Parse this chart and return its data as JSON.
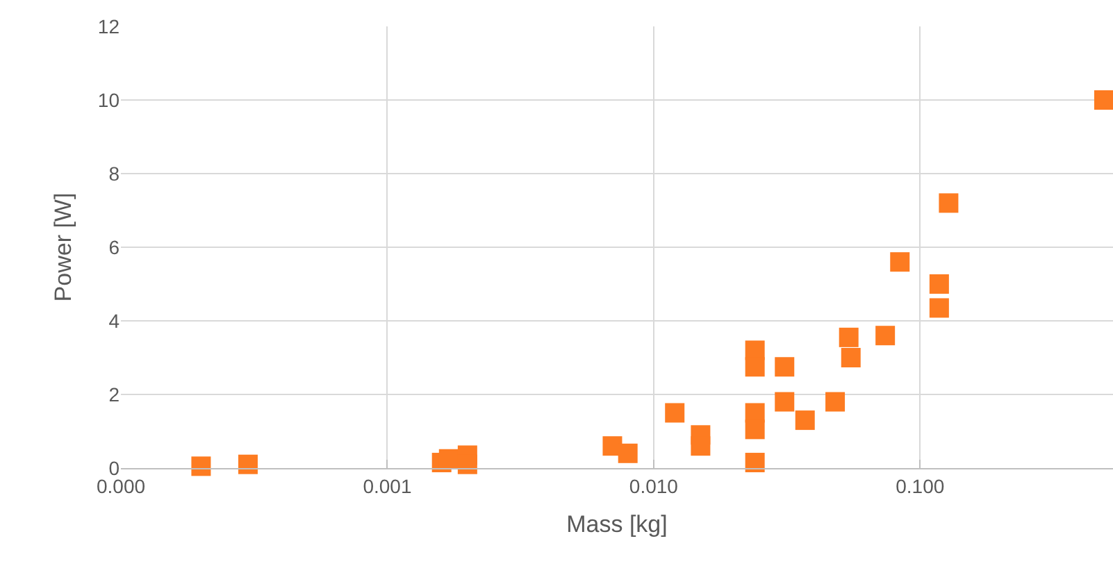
{
  "chart_data": {
    "type": "scatter",
    "xlabel": "Mass [kg]",
    "ylabel": "Power [W]",
    "log": "x",
    "grid": true,
    "marker": "square",
    "xlim": [
      0.0001,
      0.53
    ],
    "xticks": [
      {
        "value": 0.0001,
        "label": "0.000"
      },
      {
        "value": 0.001,
        "label": "0.001"
      },
      {
        "value": 0.01,
        "label": "0.010"
      },
      {
        "value": 0.1,
        "label": "0.100"
      }
    ],
    "ylim": [
      0,
      12
    ],
    "yticks": [
      0,
      2,
      4,
      6,
      8,
      10,
      12
    ],
    "series": [
      {
        "color": "#fd7b21",
        "x": [
          0.0002,
          0.0003,
          0.0016,
          0.0017,
          0.002,
          0.002,
          0.007,
          0.008,
          0.012,
          0.015,
          0.015,
          0.024,
          0.024,
          0.024,
          0.024,
          0.024,
          0.031,
          0.031,
          0.037,
          0.048,
          0.054,
          0.055,
          0.074,
          0.084,
          0.118,
          0.118,
          0.128,
          0.49
        ],
        "values": [
          0.05,
          0.1,
          0.15,
          0.25,
          0.35,
          0.1,
          0.6,
          0.4,
          1.5,
          0.9,
          0.6,
          0.15,
          1.5,
          1.05,
          3.2,
          2.75,
          2.75,
          1.8,
          1.3,
          1.8,
          3.55,
          3.0,
          3.6,
          5.6,
          5.0,
          4.35,
          7.2,
          10.0
        ]
      }
    ]
  }
}
